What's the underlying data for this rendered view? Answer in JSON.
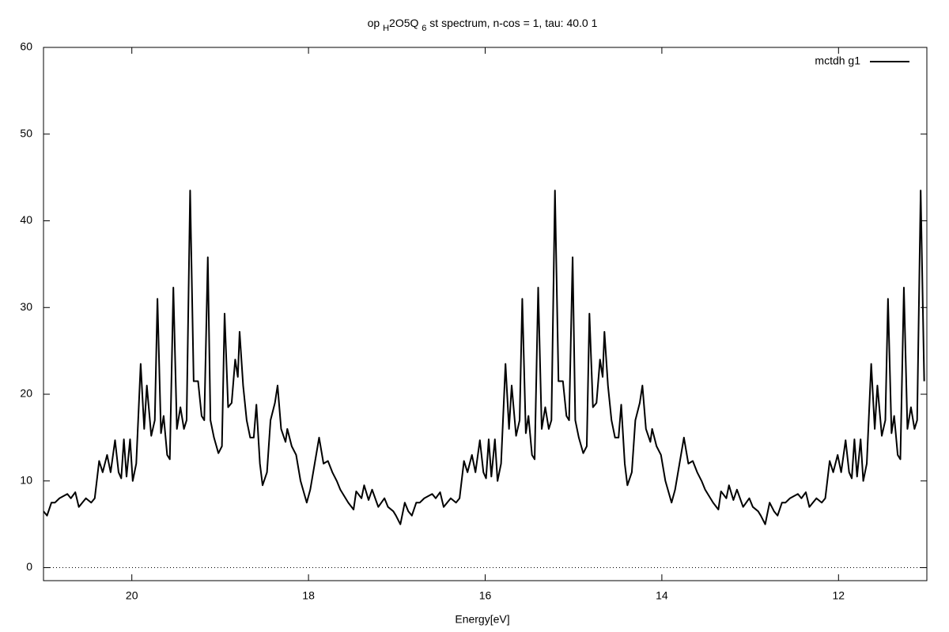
{
  "chart_data": {
    "type": "line",
    "title": [
      {
        "text": "op ",
        "sub": false
      },
      {
        "text": "H",
        "sub": true
      },
      {
        "text": "2O5Q ",
        "sub": false
      },
      {
        "text": "6",
        "sub": true
      },
      {
        "text": " st spectrum, n-cos = 1, tau: 40.0 1",
        "sub": false
      }
    ],
    "x_label": "Energy[eV]",
    "xlim": [
      21,
      11
    ],
    "xticks": [
      20,
      18,
      16,
      14,
      12
    ],
    "ylim": [
      -1.5,
      60
    ],
    "yticks": [
      0,
      10,
      20,
      30,
      40,
      50,
      60
    ],
    "zero_line": true,
    "legend": "top-right",
    "x": [
      21.0,
      20.96,
      20.91,
      20.87,
      20.82,
      20.73,
      20.69,
      20.64,
      20.6,
      20.52,
      20.46,
      20.42,
      20.37,
      20.33,
      20.28,
      20.24,
      20.19,
      20.15,
      20.12,
      20.09,
      20.06,
      20.02,
      19.99,
      19.95,
      19.9,
      19.86,
      19.83,
      19.78,
      19.74,
      19.71,
      19.67,
      19.64,
      19.6,
      19.57,
      19.53,
      19.49,
      19.45,
      19.41,
      19.38,
      19.34,
      19.3,
      19.25,
      19.21,
      19.18,
      19.14,
      19.11,
      19.07,
      19.02,
      18.98,
      18.95,
      18.91,
      18.87,
      18.83,
      18.8,
      18.78,
      18.74,
      18.7,
      18.66,
      18.62,
      18.59,
      18.55,
      18.52,
      18.47,
      18.43,
      18.38,
      18.35,
      18.31,
      18.26,
      18.24,
      18.19,
      18.14,
      18.09,
      18.02,
      17.98,
      17.93,
      17.88,
      17.83,
      17.78,
      17.73,
      17.68,
      17.64,
      17.58,
      17.55,
      17.49,
      17.46,
      17.4,
      17.37,
      17.32,
      17.28,
      17.21,
      17.14,
      17.1,
      17.04,
      17.01,
      16.96,
      16.91,
      16.87,
      16.83,
      16.78,
      16.74,
      16.69,
      16.6,
      16.56,
      16.51,
      16.47,
      16.39,
      16.33,
      16.29,
      16.24,
      16.2,
      16.15,
      16.11,
      16.06,
      16.02,
      15.99,
      15.96,
      15.93,
      15.89,
      15.86,
      15.82,
      15.77,
      15.73,
      15.7,
      15.65,
      15.61,
      15.58,
      15.54,
      15.51,
      15.47,
      15.44,
      15.4,
      15.36,
      15.32,
      15.28,
      15.25,
      15.21,
      15.17,
      15.12,
      15.08,
      15.05,
      15.01,
      14.98,
      14.94,
      14.89,
      14.85,
      14.82,
      14.78,
      14.74,
      14.7,
      14.67,
      14.65,
      14.61,
      14.57,
      14.53,
      14.49,
      14.46,
      14.42,
      14.39,
      14.34,
      14.3,
      14.25,
      14.22,
      14.18,
      14.13,
      14.11,
      14.06,
      14.01,
      13.96,
      13.89,
      13.85,
      13.8,
      13.75,
      13.7,
      13.65,
      13.6,
      13.55,
      13.51,
      13.45,
      13.42,
      13.36,
      13.33,
      13.27,
      13.24,
      13.19,
      13.15,
      13.08,
      13.01,
      12.97,
      12.91,
      12.88,
      12.83,
      12.78,
      12.73,
      12.69,
      12.64,
      12.6,
      12.55,
      12.46,
      12.42,
      12.37,
      12.33,
      12.25,
      12.19,
      12.15,
      12.1,
      12.06,
      12.01,
      11.97,
      11.92,
      11.88,
      11.85,
      11.82,
      11.79,
      11.75,
      11.72,
      11.68,
      11.63,
      11.59,
      11.56,
      11.51,
      11.47,
      11.44,
      11.4,
      11.37,
      11.33,
      11.3,
      11.26,
      11.22,
      11.18,
      11.14,
      11.11,
      11.07,
      11.03
    ],
    "series": [
      {
        "name": "mctdh g1",
        "color": "#000000",
        "values": [
          6.5,
          6,
          7.5,
          7.5,
          8,
          8.5,
          8,
          8.7,
          7,
          8,
          7.5,
          8,
          12.3,
          11,
          13,
          11,
          14.7,
          11,
          10.3,
          14.8,
          10.5,
          14.8,
          10,
          12,
          23.5,
          16,
          21,
          15.2,
          17,
          31,
          15.5,
          17.5,
          13,
          12.5,
          32.3,
          16,
          18.5,
          16,
          17,
          43.5,
          21.5,
          21.5,
          17.5,
          17,
          35.8,
          17,
          15,
          13.2,
          14,
          29.3,
          18.5,
          19,
          24,
          22,
          27.2,
          21,
          17,
          15,
          15,
          18.8,
          12,
          9.5,
          11,
          17,
          19,
          21,
          16,
          14.5,
          16,
          14,
          13,
          10,
          7.5,
          9,
          12,
          15,
          12,
          12.3,
          11,
          10,
          9,
          8,
          7.5,
          6.7,
          8.8,
          8,
          9.5,
          7.8,
          9,
          7,
          8,
          7,
          6.5,
          6,
          5,
          7.5,
          6.5,
          6,
          7.5,
          7.5,
          8,
          8.5,
          8,
          8.7,
          7,
          8,
          7.5,
          8,
          12.3,
          11,
          13,
          11,
          14.7,
          11,
          10.3,
          14.8,
          10.5,
          14.8,
          10,
          12,
          23.5,
          16,
          21,
          15.2,
          17,
          31,
          15.5,
          17.5,
          13,
          12.5,
          32.3,
          16,
          18.5,
          16,
          17,
          43.5,
          21.5,
          21.5,
          17.5,
          17,
          35.8,
          17,
          15,
          13.2,
          14,
          29.3,
          18.5,
          19,
          24,
          22,
          27.2,
          21,
          17,
          15,
          15,
          18.8,
          12,
          9.5,
          11,
          17,
          19,
          21,
          16,
          14.5,
          16,
          14,
          13,
          10,
          7.5,
          9,
          12,
          15,
          12,
          12.3,
          11,
          10,
          9,
          8,
          7.5,
          6.7,
          8.8,
          8,
          9.5,
          7.8,
          9,
          7,
          8,
          7,
          6.5,
          6,
          5,
          7.5,
          6.5,
          6,
          7.5,
          7.5,
          8,
          8.5,
          8,
          8.7,
          7,
          8,
          7.5,
          8,
          12.3,
          11,
          13,
          11,
          14.7,
          11,
          10.3,
          14.8,
          10.5,
          14.8,
          10,
          12,
          23.5,
          16,
          21,
          15.2,
          17,
          31,
          15.5,
          17.5,
          13,
          12.5,
          32.3,
          16,
          18.5,
          16,
          17,
          43.5,
          21.5
        ]
      }
    ]
  }
}
